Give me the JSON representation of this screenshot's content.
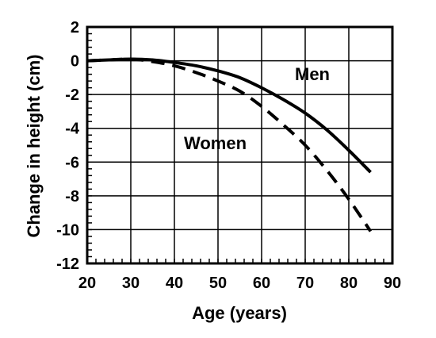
{
  "chart_data": {
    "type": "line",
    "title": "",
    "xlabel": "Age (years)",
    "ylabel": "Change in height (cm)",
    "xlim": [
      20,
      90
    ],
    "ylim": [
      -12,
      2
    ],
    "xticks": [
      "20",
      "30",
      "40",
      "50",
      "60",
      "70",
      "80",
      "90"
    ],
    "yticks": [
      "2",
      "0",
      "-2",
      "-4",
      "-6",
      "-8",
      "-10",
      "-12"
    ],
    "grid": true,
    "series": [
      {
        "name": "Men",
        "style": "solid",
        "x": [
          20,
          25,
          30,
          35,
          40,
          45,
          50,
          55,
          60,
          65,
          70,
          75,
          80,
          85
        ],
        "y": [
          0,
          0.05,
          0.1,
          0.05,
          -0.1,
          -0.3,
          -0.6,
          -1.0,
          -1.6,
          -2.3,
          -3.1,
          -4.1,
          -5.3,
          -6.6
        ]
      },
      {
        "name": "Women",
        "style": "dashed",
        "x": [
          20,
          25,
          30,
          35,
          40,
          45,
          50,
          55,
          60,
          65,
          70,
          75,
          80,
          85
        ],
        "y": [
          0,
          0.05,
          0.1,
          -0.05,
          -0.3,
          -0.7,
          -1.2,
          -1.8,
          -2.7,
          -3.8,
          -5.0,
          -6.5,
          -8.2,
          -10.1
        ]
      }
    ]
  }
}
